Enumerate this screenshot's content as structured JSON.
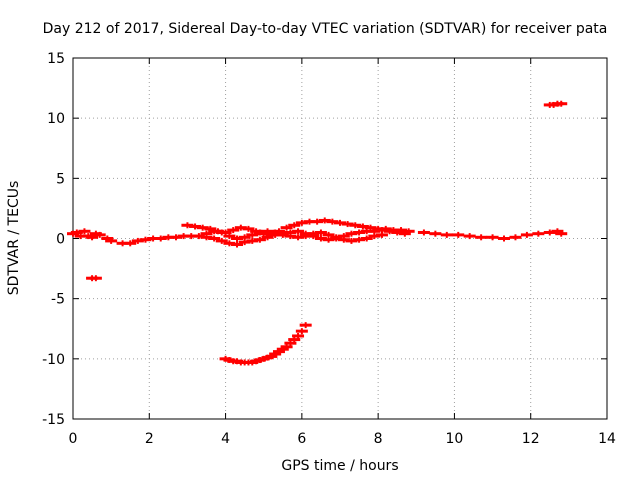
{
  "chart_data": {
    "type": "scatter",
    "title": "Day 212 of 2017, Sidereal Day-to-day VTEC variation (SDTVAR) for receiver pata",
    "xlabel": "GPS time / hours",
    "ylabel": "SDTVAR / TECUs",
    "xlim": [
      0,
      14
    ],
    "ylim": [
      -15,
      15
    ],
    "xticks": [
      "0",
      "2",
      "4",
      "6",
      "8",
      "10",
      "12",
      "14"
    ],
    "yticks": [
      "15",
      "10",
      "5",
      "0",
      "-5",
      "-10",
      "-15"
    ],
    "grid": true,
    "marker": "plus",
    "series": [
      {
        "color": "#ff0000",
        "points": [
          [
            0.0,
            0.4
          ],
          [
            0.1,
            0.5
          ],
          [
            0.2,
            0.2
          ],
          [
            0.3,
            0.6
          ],
          [
            0.4,
            0.2
          ],
          [
            0.5,
            0.1
          ],
          [
            0.6,
            0.4
          ],
          [
            0.7,
            0.3
          ],
          [
            0.9,
            0.0
          ],
          [
            1.0,
            -0.2
          ],
          [
            1.3,
            -0.4
          ],
          [
            1.5,
            -0.4
          ],
          [
            1.7,
            -0.2
          ],
          [
            1.9,
            -0.1
          ],
          [
            2.1,
            0.0
          ],
          [
            2.3,
            0.0
          ],
          [
            2.5,
            0.1
          ],
          [
            2.7,
            0.1
          ],
          [
            2.9,
            0.2
          ],
          [
            3.1,
            0.2
          ],
          [
            3.3,
            0.2
          ],
          [
            3.5,
            0.1
          ],
          [
            3.7,
            0.0
          ],
          [
            3.9,
            -0.2
          ],
          [
            4.1,
            -0.4
          ],
          [
            4.3,
            -0.5
          ],
          [
            4.5,
            -0.3
          ],
          [
            4.7,
            -0.2
          ],
          [
            4.9,
            -0.1
          ],
          [
            5.1,
            0.1
          ],
          [
            5.3,
            0.3
          ],
          [
            5.5,
            0.4
          ],
          [
            5.7,
            0.5
          ],
          [
            5.9,
            0.6
          ],
          [
            6.1,
            0.4
          ],
          [
            6.3,
            0.2
          ],
          [
            6.5,
            0.0
          ],
          [
            6.7,
            -0.1
          ],
          [
            6.9,
            0.0
          ],
          [
            7.1,
            0.2
          ],
          [
            7.3,
            0.4
          ],
          [
            7.5,
            0.5
          ],
          [
            7.7,
            0.6
          ],
          [
            7.9,
            0.6
          ],
          [
            8.1,
            0.7
          ],
          [
            8.3,
            0.6
          ],
          [
            8.5,
            0.5
          ],
          [
            8.7,
            0.4
          ],
          [
            3.0,
            1.1
          ],
          [
            3.2,
            1.0
          ],
          [
            3.4,
            0.9
          ],
          [
            3.6,
            0.8
          ],
          [
            3.8,
            0.6
          ],
          [
            4.0,
            0.5
          ],
          [
            4.2,
            0.7
          ],
          [
            4.4,
            0.9
          ],
          [
            4.6,
            0.8
          ],
          [
            4.8,
            0.6
          ],
          [
            5.0,
            0.4
          ],
          [
            5.2,
            0.3
          ],
          [
            5.4,
            0.6
          ],
          [
            5.6,
            0.9
          ],
          [
            5.8,
            1.1
          ],
          [
            6.0,
            1.3
          ],
          [
            6.2,
            1.4
          ],
          [
            6.4,
            1.4
          ],
          [
            6.6,
            1.5
          ],
          [
            6.8,
            1.4
          ],
          [
            7.0,
            1.3
          ],
          [
            7.2,
            1.2
          ],
          [
            7.4,
            1.1
          ],
          [
            7.6,
            1.0
          ],
          [
            7.8,
            0.9
          ],
          [
            8.0,
            0.8
          ],
          [
            8.2,
            0.8
          ],
          [
            8.4,
            0.7
          ],
          [
            8.6,
            0.7
          ],
          [
            8.8,
            0.6
          ],
          [
            3.5,
            0.4
          ],
          [
            3.7,
            0.6
          ],
          [
            3.9,
            0.5
          ],
          [
            4.1,
            0.2
          ],
          [
            4.3,
            0.0
          ],
          [
            4.5,
            0.1
          ],
          [
            4.7,
            0.3
          ],
          [
            4.9,
            0.5
          ],
          [
            5.1,
            0.6
          ],
          [
            5.3,
            0.5
          ],
          [
            5.5,
            0.3
          ],
          [
            5.7,
            0.2
          ],
          [
            5.9,
            0.1
          ],
          [
            6.1,
            0.2
          ],
          [
            6.3,
            0.4
          ],
          [
            6.5,
            0.5
          ],
          [
            6.7,
            0.3
          ],
          [
            6.9,
            0.1
          ],
          [
            7.1,
            -0.1
          ],
          [
            7.3,
            -0.2
          ],
          [
            7.5,
            -0.1
          ],
          [
            7.7,
            0.0
          ],
          [
            7.9,
            0.2
          ],
          [
            8.1,
            0.3
          ],
          [
            9.2,
            0.5
          ],
          [
            9.5,
            0.4
          ],
          [
            9.8,
            0.3
          ],
          [
            10.1,
            0.3
          ],
          [
            10.4,
            0.2
          ],
          [
            10.7,
            0.1
          ],
          [
            11.0,
            0.1
          ],
          [
            11.3,
            0.0
          ],
          [
            11.6,
            0.1
          ],
          [
            11.9,
            0.3
          ],
          [
            12.2,
            0.4
          ],
          [
            12.5,
            0.5
          ],
          [
            12.7,
            0.6
          ],
          [
            12.8,
            0.4
          ],
          [
            0.5,
            -3.3
          ],
          [
            0.6,
            -3.3
          ],
          [
            12.5,
            11.1
          ],
          [
            12.6,
            11.1
          ],
          [
            12.7,
            11.2
          ],
          [
            12.8,
            11.2
          ],
          [
            4.0,
            -10.0
          ],
          [
            4.1,
            -10.1
          ],
          [
            4.2,
            -10.2
          ],
          [
            4.3,
            -10.2
          ],
          [
            4.4,
            -10.3
          ],
          [
            4.5,
            -10.3
          ],
          [
            4.6,
            -10.3
          ],
          [
            4.7,
            -10.3
          ],
          [
            4.8,
            -10.2
          ],
          [
            4.9,
            -10.1
          ],
          [
            5.0,
            -10.0
          ],
          [
            5.1,
            -9.9
          ],
          [
            5.2,
            -9.8
          ],
          [
            5.3,
            -9.6
          ],
          [
            5.4,
            -9.4
          ],
          [
            5.5,
            -9.2
          ],
          [
            5.6,
            -9.0
          ],
          [
            5.7,
            -8.7
          ],
          [
            5.8,
            -8.4
          ],
          [
            5.9,
            -8.1
          ],
          [
            6.0,
            -7.7
          ],
          [
            6.1,
            -7.2
          ]
        ]
      }
    ]
  }
}
